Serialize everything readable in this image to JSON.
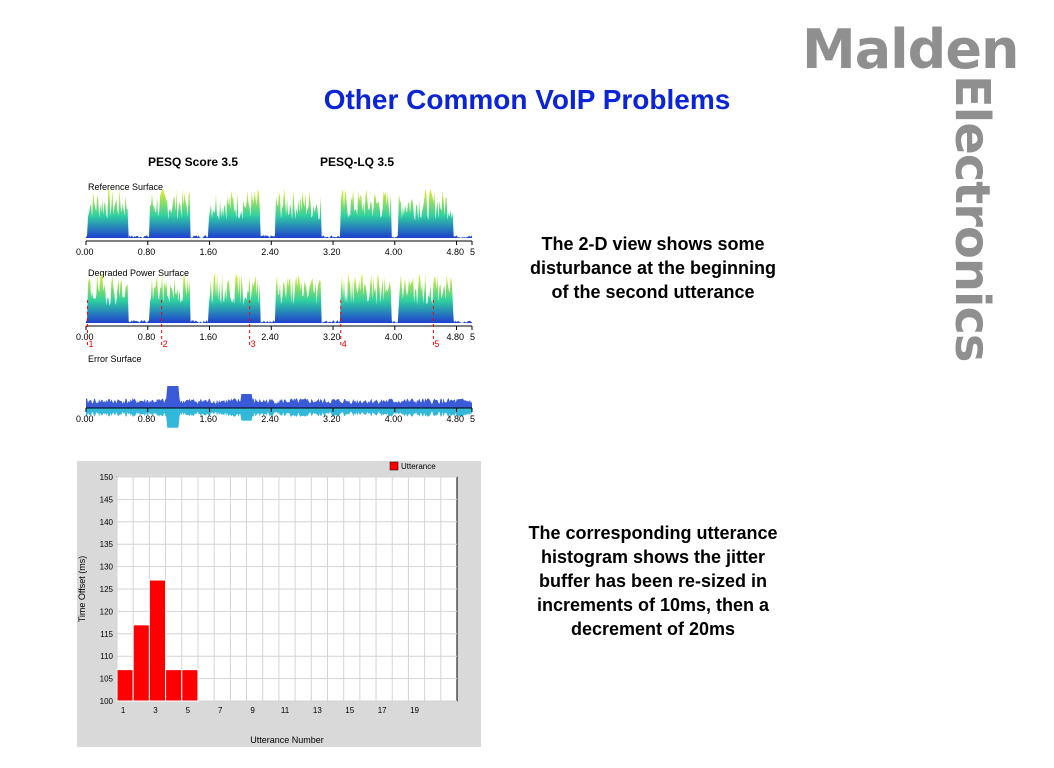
{
  "logo": {
    "line1": "Malden",
    "line2": "Electronics"
  },
  "title": "Other Common VoIP Problems",
  "pesq": {
    "score_label": "PESQ Score 3.5",
    "lq_label": "PESQ-LQ 3.5",
    "surfaces": [
      {
        "label": "Reference Surface"
      },
      {
        "label": "Degraded Power Surface"
      },
      {
        "label": "Error Surface"
      }
    ],
    "time_ticks": [
      "0.00",
      "0.80",
      "1.60",
      "2.40",
      "3.20",
      "4.00",
      "4.80",
      "5"
    ],
    "markers": [
      "1",
      "2",
      "3",
      "4",
      "5"
    ],
    "colors": {
      "low": "#1f3fd0",
      "mid": "#2fd0a0",
      "high": "#f0f020",
      "marker": "#ff0000"
    }
  },
  "captions": {
    "top": "The 2-D view shows some disturbance at the beginning of the second utterance",
    "bottom": "The corresponding utterance histogram shows the jitter buffer has been re-sized in increments of 10ms, then a decrement of 20ms"
  },
  "chart_data": {
    "type": "bar",
    "legend": "Utterance",
    "legend_position": "top-right",
    "grid": true,
    "bar_color": "#ff0000",
    "xlabel": "Utterance Number",
    "ylabel": "Time Offset (ms)",
    "x": [
      1,
      2,
      3,
      4,
      5
    ],
    "values": [
      107,
      117,
      127,
      107,
      107
    ],
    "xlim": [
      1,
      21
    ],
    "ylim": [
      100,
      150
    ],
    "xticks": [
      "1",
      "3",
      "5",
      "7",
      "9",
      "11",
      "13",
      "15",
      "17",
      "19"
    ],
    "yticks": [
      "100",
      "105",
      "110",
      "115",
      "120",
      "125",
      "130",
      "135",
      "140",
      "145",
      "150"
    ]
  }
}
